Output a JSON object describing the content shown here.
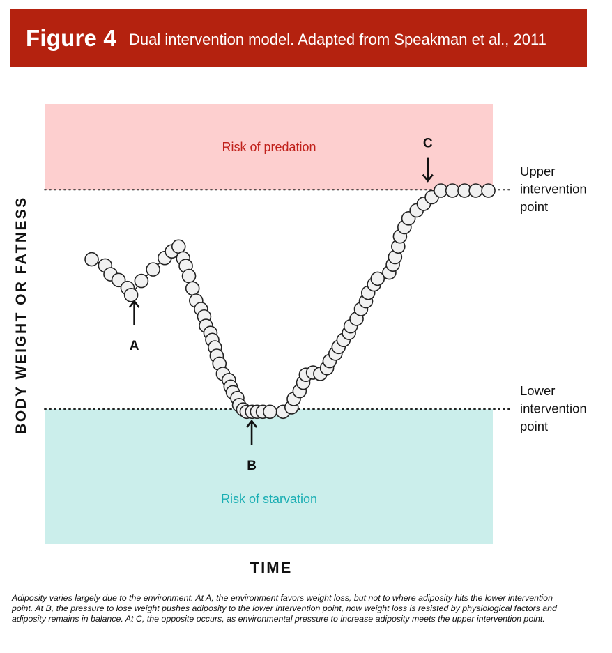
{
  "figure": {
    "number": "Figure 4",
    "title": "Dual intervention model. Adapted from Speakman et al., 2011"
  },
  "chart_data": {
    "type": "line",
    "title": "Dual intervention model",
    "xlabel": "TIME",
    "ylabel": "BODY WEIGHT OR FATNESS",
    "xlim": [
      0,
      100
    ],
    "ylim": [
      0,
      100
    ],
    "grid": false,
    "zones": [
      {
        "name": "Risk of predation",
        "from": 80.5,
        "to": 100,
        "color": "#fdcfcf",
        "label_color": "#c0201a"
      },
      {
        "name": "Risk of starvation",
        "from": 0,
        "to": 30.7,
        "color": "#cbeeeb",
        "label_color": "#1aaeb3"
      }
    ],
    "thresholds": [
      {
        "name": "Upper intervention point",
        "label_lines": [
          "Upper",
          "intervention",
          "point"
        ],
        "value": 80.5
      },
      {
        "name": "Lower intervention point",
        "label_lines": [
          "Lower",
          "intervention",
          "point"
        ],
        "value": 30.7
      }
    ],
    "series": [
      {
        "name": "Adiposity",
        "x": [
          10.5,
          13.5,
          14.7,
          16.5,
          18.5,
          19.3,
          21.6,
          24.2,
          26.8,
          28.4,
          29.9,
          30.9,
          31.5,
          32.2,
          33.0,
          33.8,
          34.9,
          35.6,
          36.0,
          37.0,
          37.4,
          38.0,
          38.4,
          39.0,
          39.8,
          41.1,
          41.5,
          42.0,
          43.0,
          43.4,
          44.3,
          45.1,
          46.3,
          47.4,
          48.7,
          50.3,
          53.2,
          55.1,
          55.6,
          56.9,
          57.7,
          58.3,
          59.9,
          61.5,
          63.0,
          63.6,
          64.9,
          65.6,
          66.7,
          67.9,
          68.3,
          69.6,
          70.6,
          71.7,
          72.2,
          73.5,
          74.3,
          76.9,
          77.7,
          78.2,
          78.9,
          79.3,
          80.3,
          81.2,
          83.0,
          84.6,
          86.4,
          88.4,
          91.0,
          93.7,
          96.2,
          99.0
        ],
        "y": [
          64.7,
          63.3,
          61.3,
          60.0,
          58.2,
          56.6,
          59.8,
          62.4,
          65.0,
          66.5,
          67.6,
          64.9,
          63.2,
          60.9,
          58.1,
          55.3,
          53.4,
          51.7,
          49.6,
          48.0,
          46.4,
          44.7,
          42.8,
          41.0,
          38.7,
          37.3,
          35.8,
          34.5,
          33.2,
          31.6,
          30.6,
          30.1,
          30.1,
          30.1,
          30.1,
          30.1,
          30.1,
          31.1,
          33.0,
          34.8,
          36.7,
          38.5,
          39.0,
          38.7,
          40.0,
          41.6,
          43.3,
          44.8,
          46.4,
          48.0,
          49.5,
          51.2,
          53.4,
          55.2,
          57.1,
          59.0,
          60.3,
          61.7,
          63.5,
          65.2,
          67.6,
          69.9,
          72.0,
          74.0,
          75.8,
          77.3,
          78.8,
          80.3,
          80.3,
          80.3,
          80.3,
          80.3
        ]
      }
    ],
    "annotations": [
      {
        "label": "A",
        "x": 20.0,
        "y": 55.2,
        "direction": "up"
      },
      {
        "label": "B",
        "x": 46.2,
        "y": 28.0,
        "direction": "up"
      },
      {
        "label": "C",
        "x": 85.5,
        "y": 82.5,
        "direction": "down"
      }
    ]
  },
  "caption": "Adiposity varies largely due to the environment. At A, the environment favors weight loss, but not to where adiposity hits the lower intervention point. At B, the pressure to lose weight pushes adiposity to the lower intervention point, now weight loss is resisted by physiological factors and adiposity remains in balance. At C, the opposite occurs, as environmental pressure to increase adiposity meets the upper intervention point."
}
